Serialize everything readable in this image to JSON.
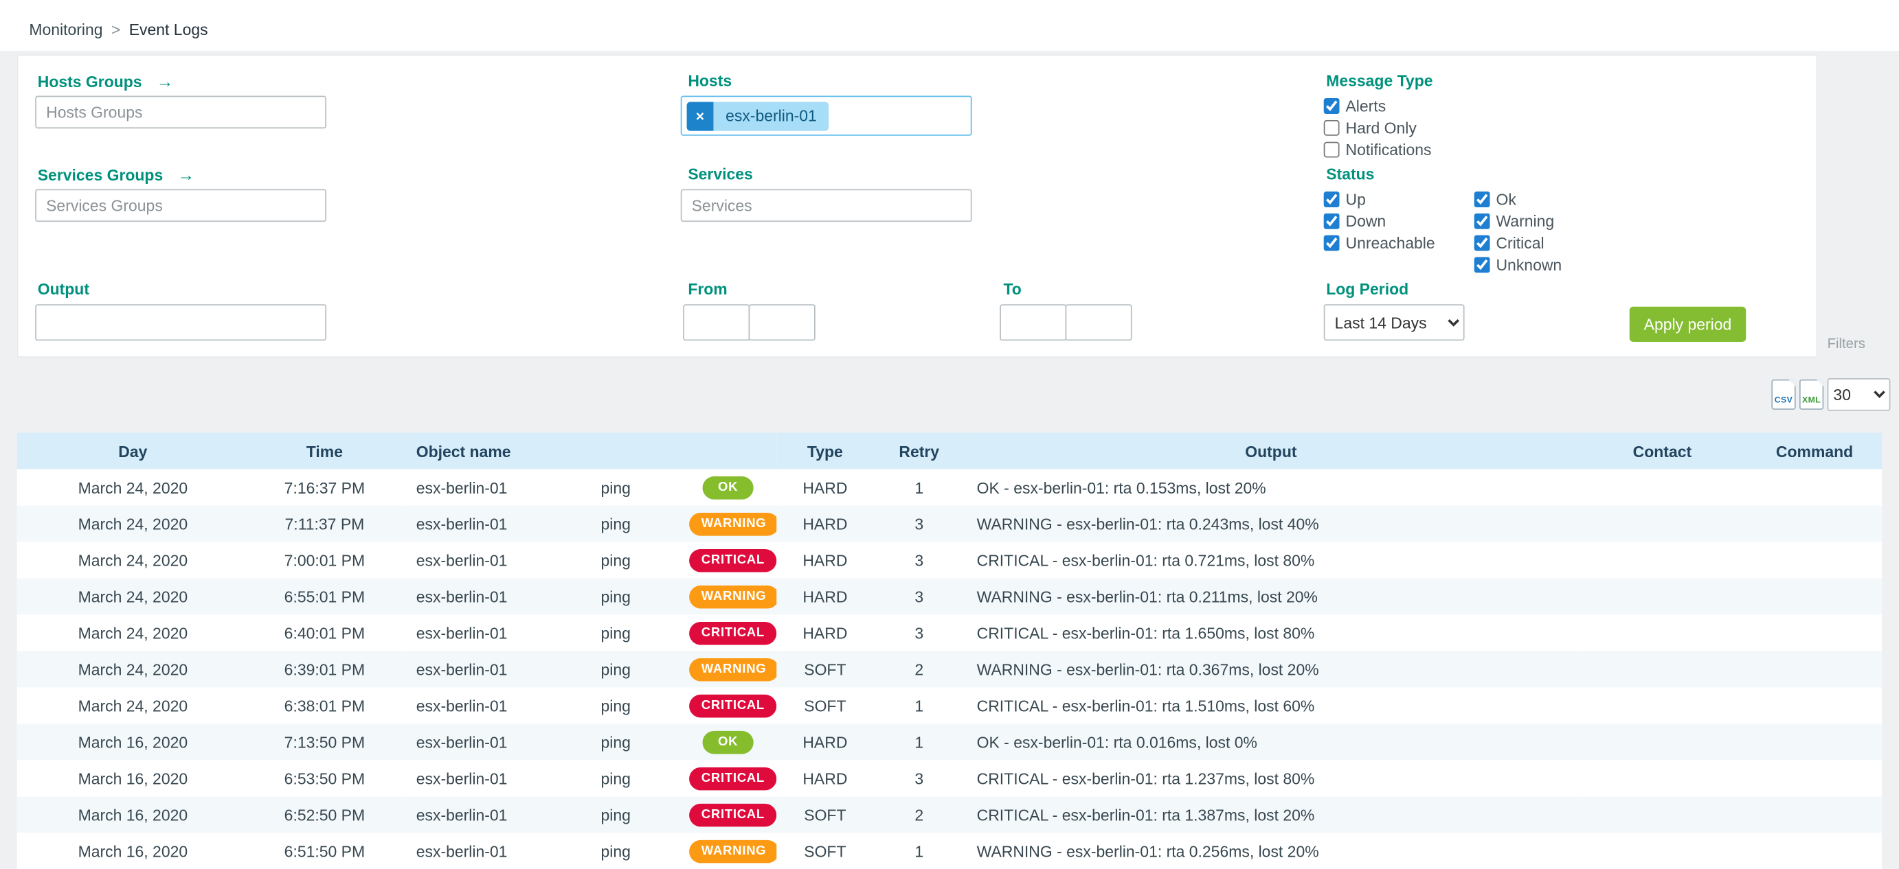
{
  "breadcrumb": {
    "section": "Monitoring",
    "separator": ">",
    "page": "Event Logs"
  },
  "icons": {
    "arrow": "→",
    "chip_remove": "×"
  },
  "filter_panel": {
    "hosts_groups_label": "Hosts Groups",
    "hosts_groups_placeholder": "Hosts Groups",
    "services_groups_label": "Services Groups",
    "services_groups_placeholder": "Services Groups",
    "hosts_label": "Hosts",
    "hosts_selected_chip": "esx-berlin-01",
    "services_label": "Services",
    "services_placeholder": "Services",
    "message_type": {
      "label": "Message Type",
      "options": [
        {
          "label": "Alerts",
          "checked": true
        },
        {
          "label": "Hard Only",
          "checked": false
        },
        {
          "label": "Notifications",
          "checked": false
        }
      ]
    },
    "status": {
      "label": "Status",
      "column1": [
        {
          "label": "Up",
          "checked": true
        },
        {
          "label": "Down",
          "checked": true
        },
        {
          "label": "Unreachable",
          "checked": true
        }
      ],
      "column2": [
        {
          "label": "Ok",
          "checked": true
        },
        {
          "label": "Warning",
          "checked": true
        },
        {
          "label": "Critical",
          "checked": true
        },
        {
          "label": "Unknown",
          "checked": true
        }
      ]
    },
    "output_label": "Output",
    "from_label": "From",
    "to_label": "To",
    "log_period": {
      "label": "Log Period",
      "selected": "Last 14 Days"
    },
    "apply_button_label": "Apply period",
    "filters_tab_label": "Filters"
  },
  "toolbar": {
    "csv_label": "CSV",
    "xml_label": "XML",
    "rows_per_page": "30"
  },
  "table": {
    "columns": [
      "Day",
      "Time",
      "Object name",
      "",
      "",
      "Type",
      "Retry",
      "Output",
      "Contact",
      "Command"
    ],
    "rows": [
      {
        "day": "March 24, 2020",
        "time": "7:16:37 PM",
        "object": "esx-berlin-01",
        "service": "ping",
        "status": "OK",
        "type": "HARD",
        "retry": "1",
        "output": "OK - esx-berlin-01: rta 0.153ms, lost 20%",
        "contact": "",
        "command": ""
      },
      {
        "day": "March 24, 2020",
        "time": "7:11:37 PM",
        "object": "esx-berlin-01",
        "service": "ping",
        "status": "WARNING",
        "type": "HARD",
        "retry": "3",
        "output": "WARNING - esx-berlin-01: rta 0.243ms, lost 40%",
        "contact": "",
        "command": ""
      },
      {
        "day": "March 24, 2020",
        "time": "7:00:01 PM",
        "object": "esx-berlin-01",
        "service": "ping",
        "status": "CRITICAL",
        "type": "HARD",
        "retry": "3",
        "output": "CRITICAL - esx-berlin-01: rta 0.721ms, lost 80%",
        "contact": "",
        "command": ""
      },
      {
        "day": "March 24, 2020",
        "time": "6:55:01 PM",
        "object": "esx-berlin-01",
        "service": "ping",
        "status": "WARNING",
        "type": "HARD",
        "retry": "3",
        "output": "WARNING - esx-berlin-01: rta 0.211ms, lost 20%",
        "contact": "",
        "command": ""
      },
      {
        "day": "March 24, 2020",
        "time": "6:40:01 PM",
        "object": "esx-berlin-01",
        "service": "ping",
        "status": "CRITICAL",
        "type": "HARD",
        "retry": "3",
        "output": "CRITICAL - esx-berlin-01: rta 1.650ms, lost 80%",
        "contact": "",
        "command": ""
      },
      {
        "day": "March 24, 2020",
        "time": "6:39:01 PM",
        "object": "esx-berlin-01",
        "service": "ping",
        "status": "WARNING",
        "type": "SOFT",
        "retry": "2",
        "output": "WARNING - esx-berlin-01: rta 0.367ms, lost 20%",
        "contact": "",
        "command": ""
      },
      {
        "day": "March 24, 2020",
        "time": "6:38:01 PM",
        "object": "esx-berlin-01",
        "service": "ping",
        "status": "CRITICAL",
        "type": "SOFT",
        "retry": "1",
        "output": "CRITICAL - esx-berlin-01: rta 1.510ms, lost 60%",
        "contact": "",
        "command": ""
      },
      {
        "day": "March 16, 2020",
        "time": "7:13:50 PM",
        "object": "esx-berlin-01",
        "service": "ping",
        "status": "OK",
        "type": "HARD",
        "retry": "1",
        "output": "OK - esx-berlin-01: rta 0.016ms, lost 0%",
        "contact": "",
        "command": ""
      },
      {
        "day": "March 16, 2020",
        "time": "6:53:50 PM",
        "object": "esx-berlin-01",
        "service": "ping",
        "status": "CRITICAL",
        "type": "HARD",
        "retry": "3",
        "output": "CRITICAL - esx-berlin-01: rta 1.237ms, lost 80%",
        "contact": "",
        "command": ""
      },
      {
        "day": "March 16, 2020",
        "time": "6:52:50 PM",
        "object": "esx-berlin-01",
        "service": "ping",
        "status": "CRITICAL",
        "type": "SOFT",
        "retry": "2",
        "output": "CRITICAL - esx-berlin-01: rta 1.387ms, lost 20%",
        "contact": "",
        "command": ""
      },
      {
        "day": "March 16, 2020",
        "time": "6:51:50 PM",
        "object": "esx-berlin-01",
        "service": "ping",
        "status": "WARNING",
        "type": "SOFT",
        "retry": "1",
        "output": "WARNING - esx-berlin-01: rta 0.256ms, lost 20%",
        "contact": "",
        "command": ""
      }
    ]
  },
  "colors": {
    "accent_teal": "#00917d",
    "apply_green": "#84bd32",
    "status_ok": "#85bd2d",
    "status_warning": "#fd9a14",
    "status_critical": "#e00b3d",
    "checkbox_blue": "#1e7fd2",
    "table_header_bg": "#d7edf9",
    "row_alt_bg": "#f3f8fb",
    "chip_bg": "#a8ddf8"
  }
}
